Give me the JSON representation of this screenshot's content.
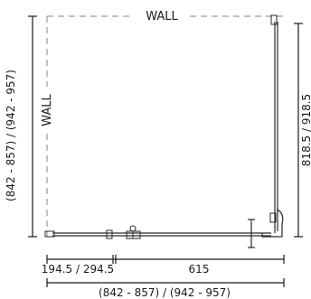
{
  "walls": {
    "top_label": "WALL",
    "left_label": "WALL"
  },
  "dimensions": {
    "left_vertical": "(842 - 857) / (942 - 957)",
    "right_vertical": "818.5 / 918.5",
    "bottom_left_segment": "194.5 / 294.5",
    "bottom_right_segment": "615",
    "bottom_overall": "(842 - 857) / (942 - 957)"
  }
}
